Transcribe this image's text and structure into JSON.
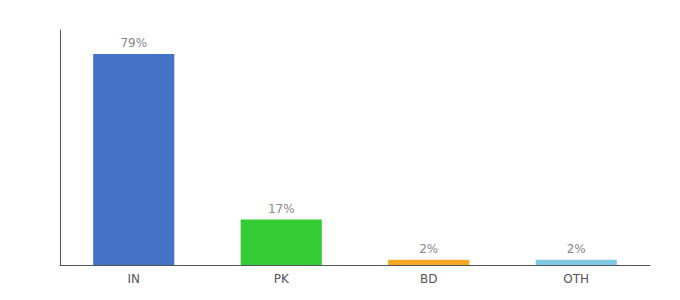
{
  "chart_data": {
    "type": "bar",
    "categories": [
      "IN",
      "PK",
      "BD",
      "OTH"
    ],
    "values": [
      79,
      17,
      2,
      2
    ],
    "value_labels": [
      "79%",
      "17%",
      "2%",
      "2%"
    ],
    "data_labels": true,
    "colors": [
      "#4472c4",
      "#33cc33",
      "#f5a623",
      "#7ec8e3"
    ],
    "ylim": [
      0,
      88
    ],
    "grid": false,
    "tick_labels": "x"
  }
}
